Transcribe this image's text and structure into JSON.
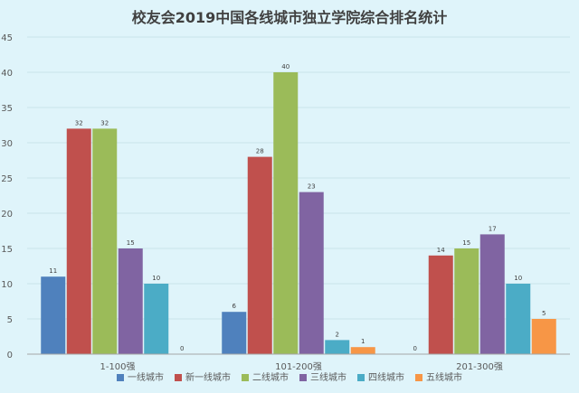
{
  "chart_data": {
    "type": "bar",
    "title": "校友会2019中国各线城市独立学院综合排名统计",
    "categories": [
      "1-100强",
      "101-200强",
      "201-300强"
    ],
    "ylim": [
      0,
      45
    ],
    "yticks": [
      0,
      5,
      10,
      15,
      20,
      25,
      30,
      35,
      40,
      45
    ],
    "grid": true,
    "legend_position": "bottom",
    "series": [
      {
        "name": "一线城市",
        "color": "#4f81bd",
        "values": [
          11,
          6,
          0
        ]
      },
      {
        "name": "新一线城市",
        "color": "#c0504d",
        "values": [
          32,
          28,
          14
        ]
      },
      {
        "name": "二线城市",
        "color": "#9bbb59",
        "values": [
          32,
          40,
          15
        ]
      },
      {
        "name": "三线城市",
        "color": "#8064a2",
        "values": [
          15,
          23,
          17
        ]
      },
      {
        "name": "四线城市",
        "color": "#4bacc6",
        "values": [
          10,
          2,
          10
        ]
      },
      {
        "name": "五线城市",
        "color": "#f79646",
        "values": [
          0,
          1,
          5
        ]
      }
    ]
  }
}
